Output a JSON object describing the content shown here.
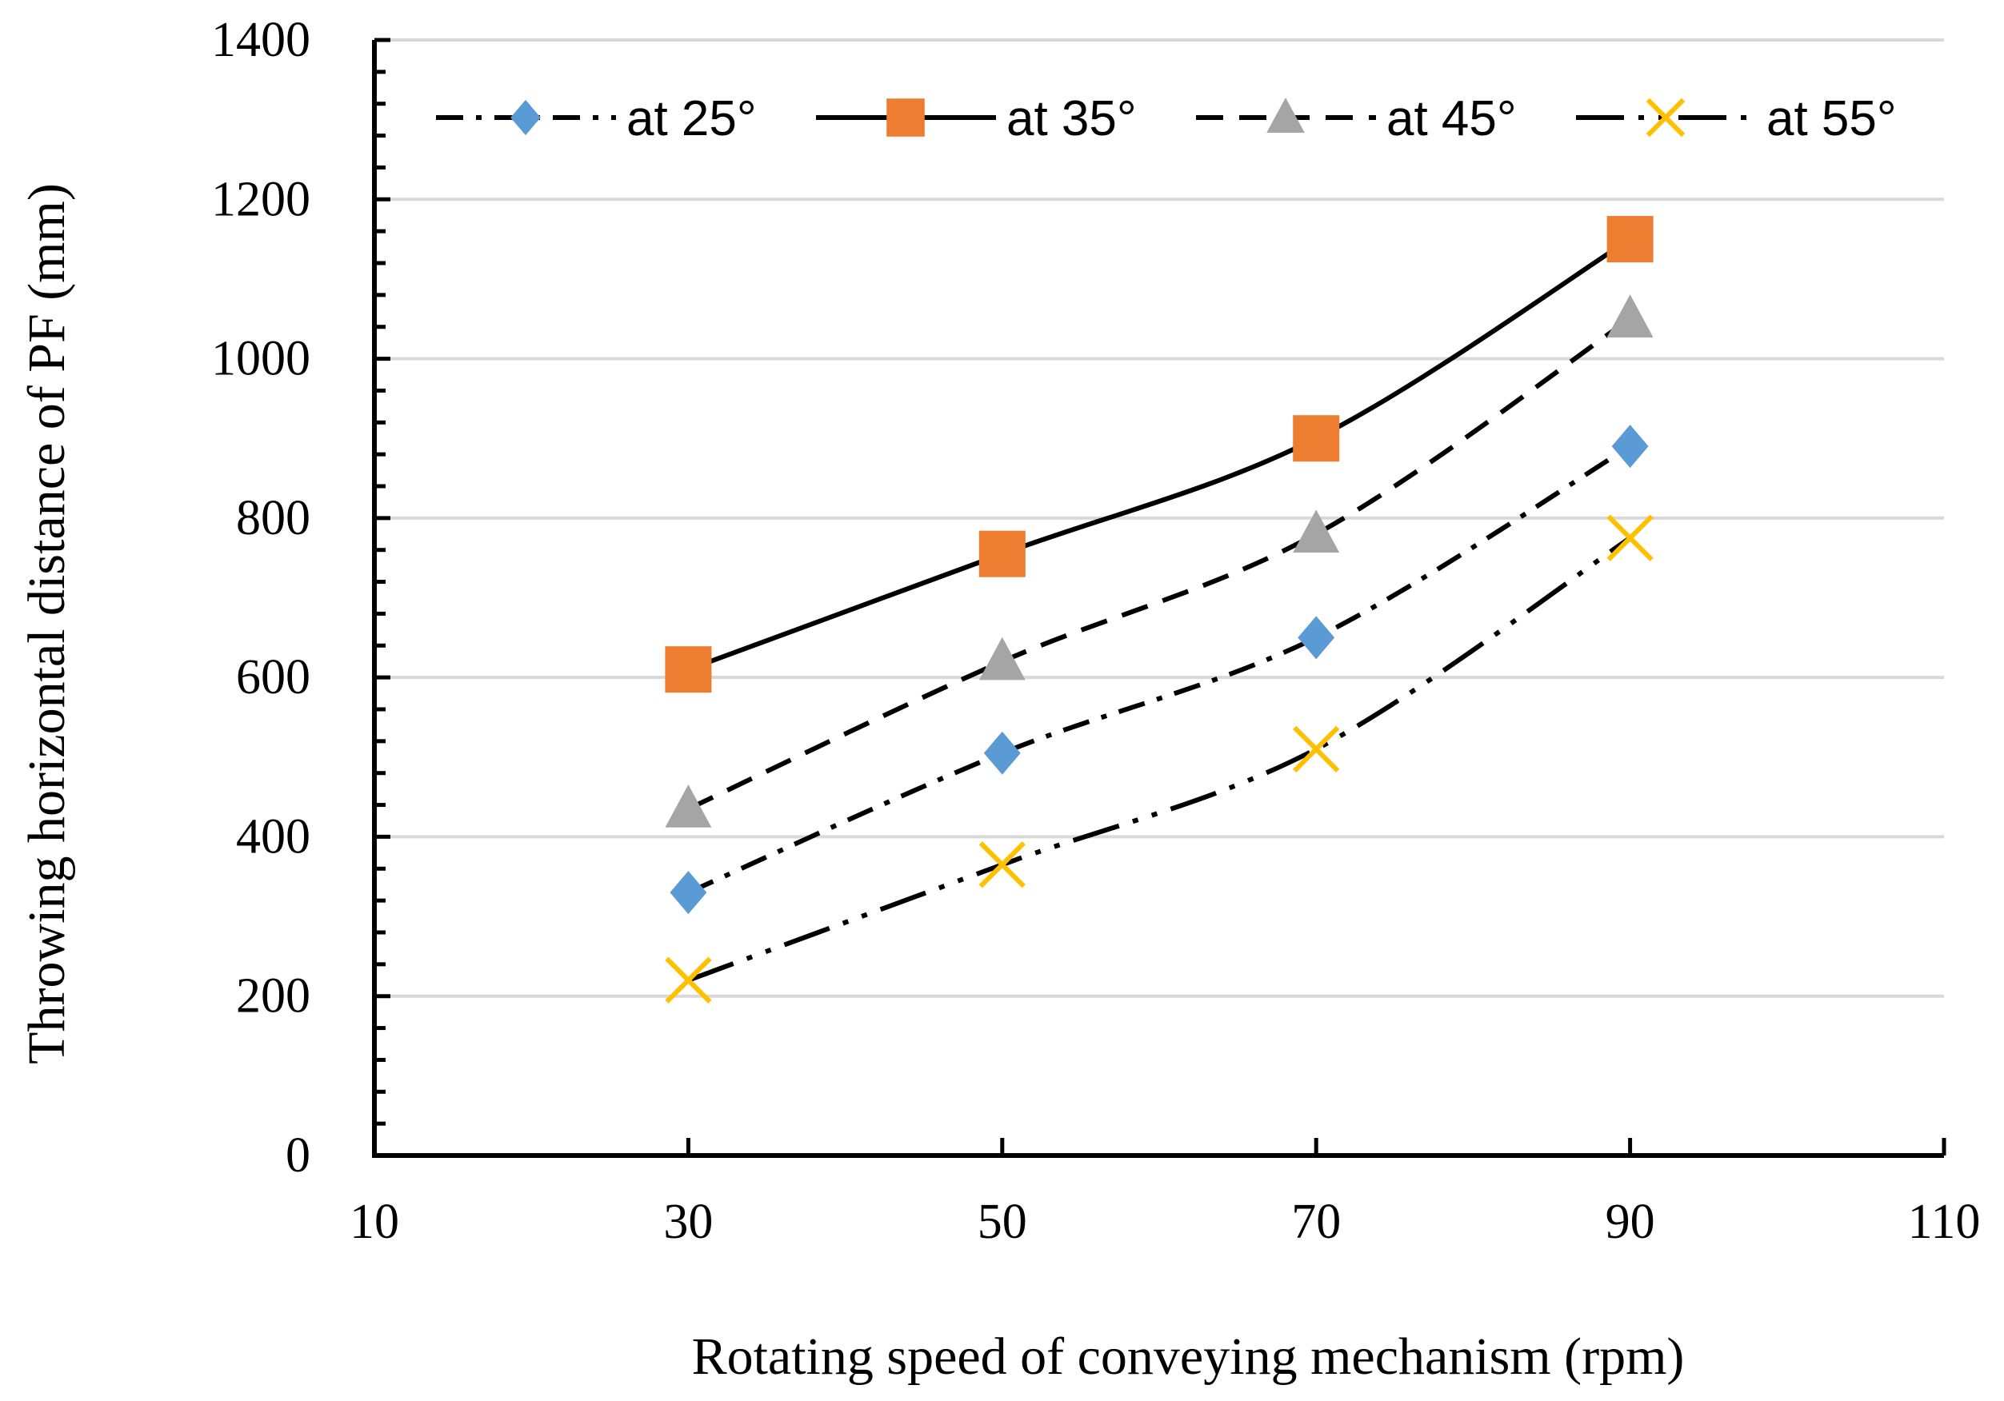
{
  "chart_data": {
    "type": "line",
    "title": "",
    "xlabel": "Rotating speed of conveying mechanism (rpm)",
    "ylabel": "Throwing horizontal distance of  PF (mm)",
    "xlim": [
      10,
      110
    ],
    "ylim": [
      0,
      1400
    ],
    "xticks": [
      10,
      30,
      50,
      70,
      90,
      110
    ],
    "yticks": [
      0,
      200,
      400,
      600,
      800,
      1000,
      1200,
      1400
    ],
    "grid": "horizontal",
    "legend_position": "top",
    "x": [
      30,
      50,
      70,
      90
    ],
    "series": [
      {
        "name": "at 25°",
        "values": [
          330,
          505,
          650,
          890
        ],
        "marker": "diamond",
        "marker_color": "#5B9BD5",
        "line_style": "dash-dot"
      },
      {
        "name": "at 35°",
        "values": [
          610,
          755,
          900,
          1150
        ],
        "marker": "square",
        "marker_color": "#ED7D31",
        "line_style": "solid"
      },
      {
        "name": "at 45°",
        "values": [
          435,
          620,
          780,
          1050
        ],
        "marker": "triangle",
        "marker_color": "#A5A5A5",
        "line_style": "dash"
      },
      {
        "name": "at 55°",
        "values": [
          220,
          365,
          510,
          775
        ],
        "marker": "x",
        "marker_color": "#FFC000",
        "line_style": "long-dash-dot-dot"
      }
    ]
  }
}
